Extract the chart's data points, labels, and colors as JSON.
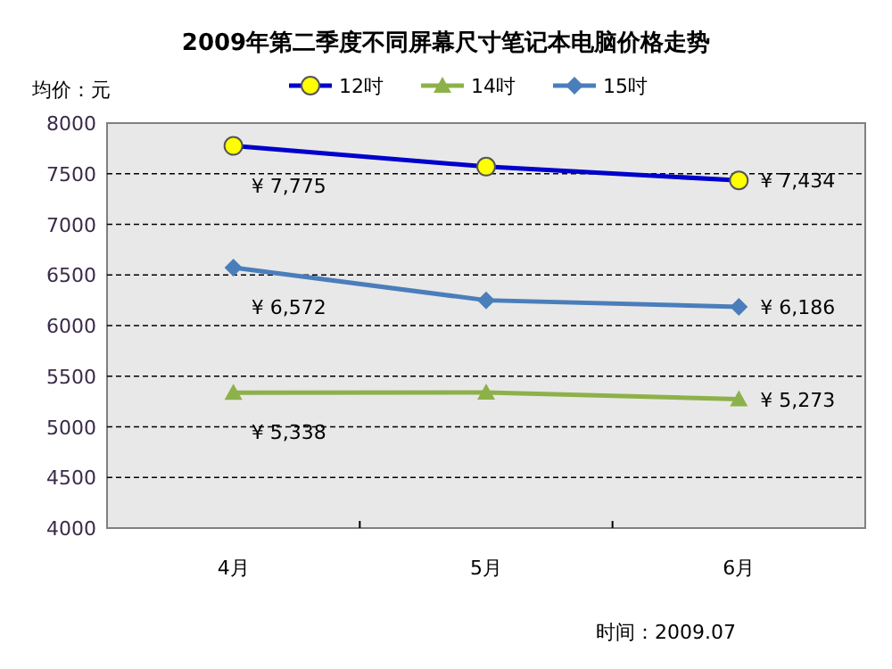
{
  "chart_data": {
    "type": "line",
    "title": "2009年第二季度不同屏幕尺寸笔记本电脑价格走势",
    "ylabel": "均价：元",
    "categories": [
      "4月",
      "5月",
      "6月"
    ],
    "series": [
      {
        "name": "12吋",
        "color": "#0000cc",
        "marker": "circle",
        "values": [
          7775,
          7570,
          7434
        ],
        "value_labels": [
          "¥ 7,775",
          null,
          "¥ 7,434"
        ]
      },
      {
        "name": "14吋",
        "color": "#8db14a",
        "marker": "triangle",
        "values": [
          5338,
          5340,
          5273
        ],
        "value_labels": [
          "¥ 5,338",
          null,
          "¥ 5,273"
        ]
      },
      {
        "name": "15吋",
        "color": "#4a7ebb",
        "marker": "diamond",
        "values": [
          6572,
          6250,
          6186
        ],
        "value_labels": [
          "¥ 6,572",
          null,
          "¥ 6,186"
        ]
      }
    ],
    "ylim": [
      4000,
      8000
    ],
    "yticks": [
      4000,
      4500,
      5000,
      5500,
      6000,
      6500,
      7000,
      7500,
      8000
    ],
    "grid": "y",
    "legend": "top",
    "annotations": [
      "时间：2009.07"
    ]
  }
}
